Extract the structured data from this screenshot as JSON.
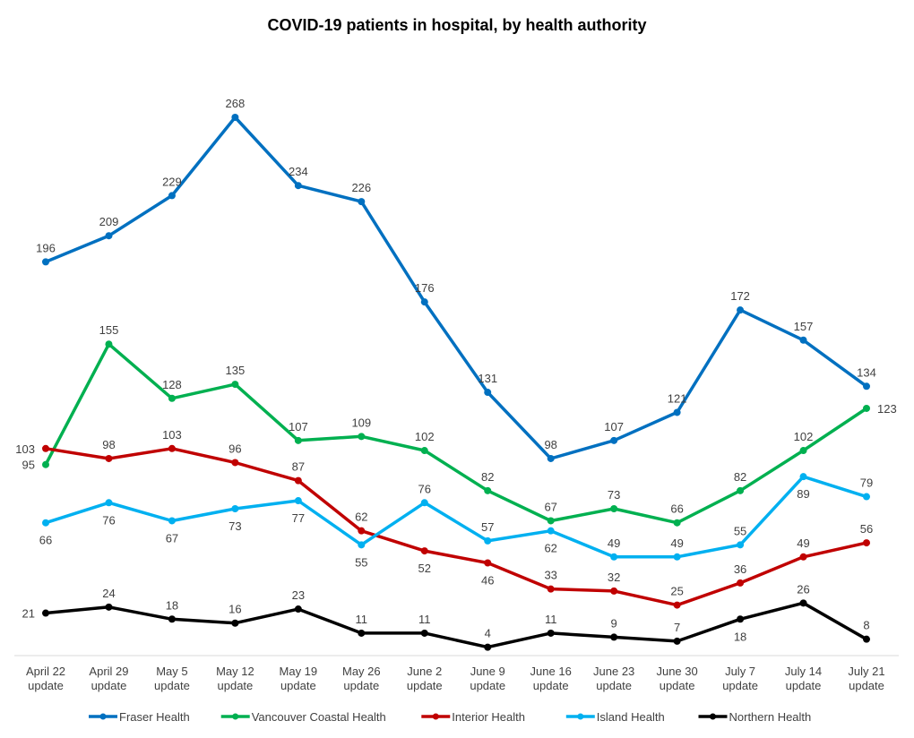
{
  "chart_data": {
    "type": "line",
    "title": "COVID-19 patients in hospital, by health authority",
    "xlabel": "",
    "ylabel": "",
    "ylim": [
      0,
      300
    ],
    "grid": false,
    "legend_position": "bottom",
    "categories": [
      [
        "April 22",
        "update"
      ],
      [
        "April 29",
        "update"
      ],
      [
        "May 5",
        "update"
      ],
      [
        "May 12",
        "update"
      ],
      [
        "May 19",
        "update"
      ],
      [
        "May 26",
        "update"
      ],
      [
        "June 2",
        "update"
      ],
      [
        "June 9",
        "update"
      ],
      [
        "June 16",
        "update"
      ],
      [
        "June 23",
        "update"
      ],
      [
        "June 30",
        "update"
      ],
      [
        "July 7",
        "update"
      ],
      [
        "July 14",
        "update"
      ],
      [
        "July 21",
        "update"
      ]
    ],
    "series": [
      {
        "name": "Fraser Health",
        "color": "#0070C0",
        "values": [
          196,
          209,
          229,
          268,
          234,
          226,
          176,
          131,
          98,
          107,
          121,
          172,
          157,
          134
        ],
        "label_pos": [
          "above",
          "above",
          "above",
          "above",
          "above",
          "above",
          "above",
          "above",
          "above",
          "above",
          "above",
          "above",
          "above",
          "above"
        ]
      },
      {
        "name": "Vancouver Coastal Health",
        "color": "#00B050",
        "values": [
          95,
          155,
          128,
          135,
          107,
          109,
          102,
          82,
          67,
          73,
          66,
          82,
          102,
          123
        ],
        "label_pos": [
          "left",
          "above",
          "above",
          "above",
          "above",
          "above",
          "above",
          "above",
          "above",
          "above",
          "above",
          "above",
          "above",
          "right"
        ]
      },
      {
        "name": "Interior Health",
        "color": "#C00000",
        "values": [
          103,
          98,
          103,
          96,
          87,
          62,
          52,
          46,
          33,
          32,
          25,
          36,
          49,
          56
        ],
        "label_pos": [
          "left",
          "above",
          "above",
          "above",
          "above",
          "above",
          "below",
          "below",
          "above",
          "above",
          "above",
          "above",
          "above",
          "above"
        ]
      },
      {
        "name": "Island Health",
        "color": "#00B0F0",
        "values": [
          66,
          76,
          67,
          73,
          77,
          55,
          76,
          57,
          62,
          49,
          49,
          55,
          89,
          79
        ],
        "label_pos": [
          "below",
          "below",
          "below",
          "below",
          "below",
          "below",
          "above",
          "above",
          "below",
          "above",
          "above",
          "above",
          "below",
          "above"
        ]
      },
      {
        "name": "Northern Health",
        "color": "#000000",
        "values": [
          21,
          24,
          18,
          16,
          23,
          11,
          11,
          4,
          11,
          9,
          7,
          18,
          26,
          8
        ],
        "label_pos": [
          "left",
          "above",
          "above",
          "above",
          "above",
          "above",
          "above",
          "above",
          "above",
          "above",
          "above",
          "below",
          "above",
          "above"
        ]
      }
    ]
  }
}
